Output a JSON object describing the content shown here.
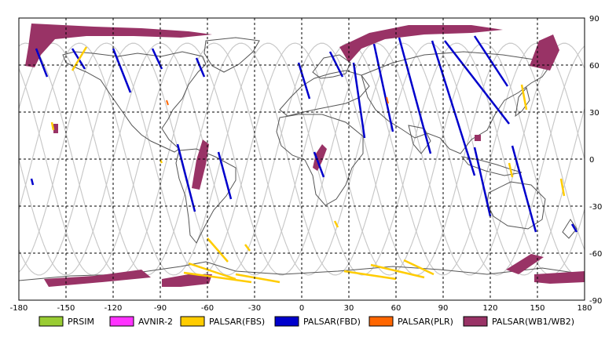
{
  "map": {
    "lon_ticks": [
      "-180",
      "-150",
      "-120",
      "-90",
      "-60",
      "-30",
      "0",
      "30",
      "60",
      "90",
      "120",
      "150",
      "180"
    ],
    "lat_ticks": [
      "90",
      "60",
      "30",
      "0",
      "-30",
      "-60",
      "-90"
    ],
    "colors": {
      "grid": "#000000",
      "coast": "#555555",
      "orbit": "#c8c8c8",
      "frame": "#000000"
    }
  },
  "legend": [
    {
      "label": "PRSIM",
      "color": "#99cc33"
    },
    {
      "label": "AVNIR-2",
      "color": "#ff33ff"
    },
    {
      "label": "PALSAR(FBS)",
      "color": "#ffcc00"
    },
    {
      "label": "PALSAR(FBD)",
      "color": "#0000cc"
    },
    {
      "label": "PALSAR(PLR)",
      "color": "#ff6600"
    },
    {
      "label": "PALSAR(WB1/WB2)",
      "color": "#993366"
    }
  ]
}
